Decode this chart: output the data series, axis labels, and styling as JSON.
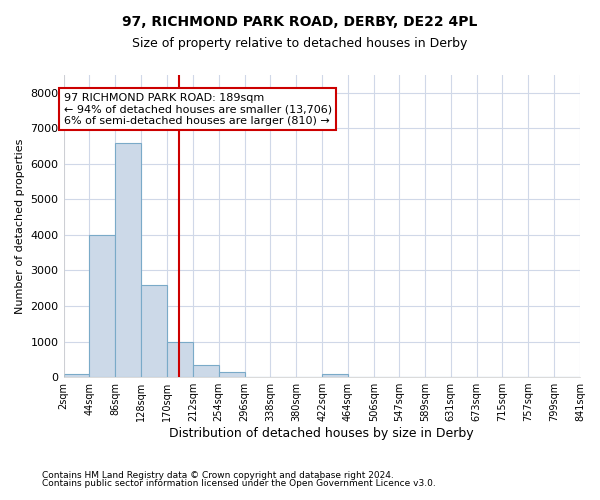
{
  "title1": "97, RICHMOND PARK ROAD, DERBY, DE22 4PL",
  "title2": "Size of property relative to detached houses in Derby",
  "xlabel": "Distribution of detached houses by size in Derby",
  "ylabel": "Number of detached properties",
  "bin_edges": [
    2,
    44,
    86,
    128,
    170,
    212,
    254,
    296,
    338,
    380,
    422,
    464,
    506,
    547,
    589,
    631,
    673,
    715,
    757,
    799,
    841
  ],
  "bin_counts": [
    100,
    4000,
    6600,
    2600,
    1000,
    330,
    130,
    0,
    0,
    0,
    80,
    0,
    0,
    0,
    0,
    0,
    0,
    0,
    0,
    0
  ],
  "bar_color": "#ccd9e8",
  "bar_edge_color": "#7aaac8",
  "property_size": 189,
  "vline_color": "#cc0000",
  "annotation_text": "97 RICHMOND PARK ROAD: 189sqm\n← 94% of detached houses are smaller (13,706)\n6% of semi-detached houses are larger (810) →",
  "annotation_box_color": "#ffffff",
  "annotation_box_edge_color": "#cc0000",
  "ylim": [
    0,
    8500
  ],
  "yticks": [
    0,
    1000,
    2000,
    3000,
    4000,
    5000,
    6000,
    7000,
    8000
  ],
  "footnote1": "Contains HM Land Registry data © Crown copyright and database right 2024.",
  "footnote2": "Contains public sector information licensed under the Open Government Licence v3.0.",
  "bg_color": "#ffffff",
  "plot_bg_color": "#ffffff",
  "grid_color": "#d0d8e8"
}
